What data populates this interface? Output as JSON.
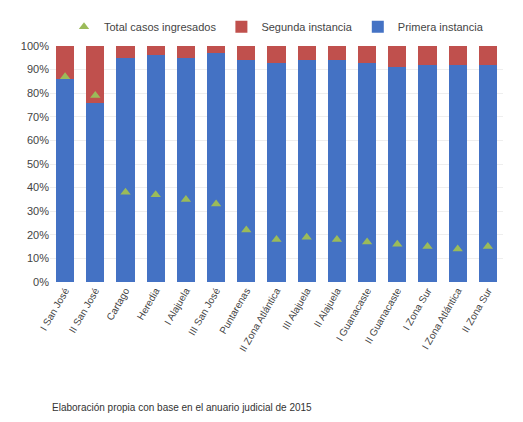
{
  "chart_data": {
    "type": "bar",
    "stacked": true,
    "categories": [
      "I San José",
      "II San José",
      "Cartago",
      "Heredia",
      "I Alajuela",
      "III San José",
      "Puntarenas",
      "II Zona Atlántica",
      "III Alajuela",
      "II Alajuela",
      "I Guanacaste",
      "II Guanacaste",
      "I Zona Sur",
      "I Zona Atlántica",
      "II Zona Sur"
    ],
    "series": [
      {
        "name": "Primera instancia",
        "type": "bar",
        "color": "#4472C4",
        "values": [
          86,
          76,
          95,
          96,
          95,
          97,
          94,
          93,
          94,
          94,
          93,
          91,
          92,
          92,
          92
        ]
      },
      {
        "name": "Segunda instancia",
        "type": "bar",
        "color": "#C0504D",
        "values": [
          14,
          24,
          5,
          4,
          5,
          3,
          6,
          7,
          6,
          6,
          7,
          9,
          8,
          8,
          8
        ]
      },
      {
        "name": "Total casos ingresados",
        "type": "scatter",
        "marker": "triangle-up",
        "color": "#9BBB59",
        "values": [
          87,
          79,
          38,
          37,
          35,
          33,
          22,
          18,
          19,
          18,
          17,
          16,
          15,
          14,
          15
        ]
      }
    ],
    "ylim": [
      0,
      100
    ],
    "yticks": [
      {
        "value": 0,
        "label": "0%"
      },
      {
        "value": 10,
        "label": "10%"
      },
      {
        "value": 20,
        "label": "20%"
      },
      {
        "value": 30,
        "label": "30%"
      },
      {
        "value": 40,
        "label": "40%"
      },
      {
        "value": 50,
        "label": "50%"
      },
      {
        "value": 60,
        "label": "60%"
      },
      {
        "value": 70,
        "label": "70%"
      },
      {
        "value": 80,
        "label": "80%"
      },
      {
        "value": 90,
        "label": "90%"
      },
      {
        "value": 100,
        "label": "100%"
      }
    ],
    "grid": true,
    "legend": "top",
    "annotations": [
      "Elaboración propia con base en el anuario judicial de 2015"
    ]
  }
}
